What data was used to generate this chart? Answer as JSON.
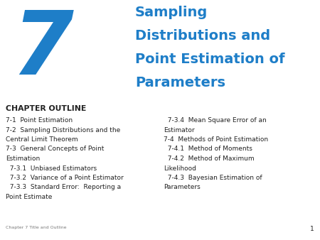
{
  "background_color": "#ffffff",
  "chapter_number": "7",
  "chapter_number_color": "#1E7EC8",
  "title_lines": [
    "Sampling",
    "Distributions and",
    "Point Estimation of",
    "Parameters"
  ],
  "title_color": "#1E7EC8",
  "section_header": "CHAPTER OUTLINE",
  "left_col_lines": [
    "7-1  Point Estimation",
    "7-2  Sampling Distributions and the",
    "Central Limit Theorem",
    "7-3  General Concepts of Point",
    "Estimation",
    "  7-3.1  Unbiased Estimators",
    "  7-3.2  Variance of a Point Estimator",
    "  7-3.3  Standard Error:  Reporting a",
    "Point Estimate"
  ],
  "right_col_lines": [
    "  7-3.4  Mean Square Error of an",
    "Estimator",
    "7-4  Methods of Point Estimation",
    "  7-4.1  Method of Moments",
    "  7-4.2  Method of Maximum",
    "Likelihood",
    "  7-4.3  Bayesian Estimation of",
    "Parameters"
  ],
  "footer_text": "Chapter 7 Title and Outline",
  "page_number": "1",
  "text_color": "#222222",
  "footer_color": "#777777",
  "chapter_num_fontsize": 90,
  "title_fontsize": 14,
  "header_fontsize": 7.8,
  "body_fontsize": 6.5,
  "footer_fontsize": 4.5,
  "page_num_fontsize": 6.5
}
